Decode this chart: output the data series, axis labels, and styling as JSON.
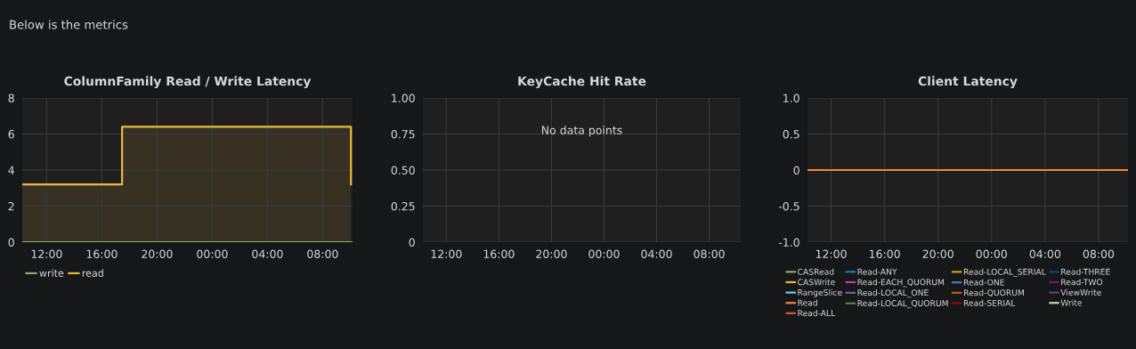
{
  "chart_data": [
    {
      "type": "other",
      "annotations": [
        "Below is the metrics"
      ]
    },
    {
      "type": "area",
      "title": "ColumnFamily Read / Write Latency",
      "xlim": [
        "2000-01-01T10:14",
        "2000-01-02T10:10"
      ],
      "xticks": [
        {
          "value": "2000-01-01T12:00",
          "label": "12:00"
        },
        {
          "value": "2000-01-01T16:00",
          "label": "16:00"
        },
        {
          "value": "2000-01-01T20:00",
          "label": "20:00"
        },
        {
          "value": "2000-01-02T00:00",
          "label": "00:00"
        },
        {
          "value": "2000-01-02T04:00",
          "label": "04:00"
        },
        {
          "value": "2000-01-02T08:00",
          "label": "08:00"
        }
      ],
      "ylim": [
        0,
        8
      ],
      "yticks": [
        0,
        2,
        4,
        6,
        8
      ],
      "grid": true,
      "legend": "bottom left",
      "series": [
        {
          "name": "write",
          "type": "line",
          "color": "#7eb26d",
          "x": [
            "2000-01-01T10:14",
            "2000-01-02T10:10"
          ],
          "values": [
            0,
            0
          ]
        },
        {
          "name": "read",
          "type": "area",
          "color": "#eab839",
          "x": [
            "2000-01-01T10:14",
            "2000-01-01T17:28",
            "2000-01-01T17:28",
            "2000-01-02T10:03",
            "2000-01-02T10:03"
          ],
          "values": [
            3.2,
            3.2,
            6.4,
            6.4,
            3.2
          ]
        }
      ]
    },
    {
      "type": "line",
      "title": "KeyCache Hit Rate",
      "xlim": [
        "2000-01-01T10:13",
        "2000-01-02T10:24"
      ],
      "xticks": [
        {
          "value": "2000-01-01T12:00",
          "label": "12:00"
        },
        {
          "value": "2000-01-01T16:00",
          "label": "16:00"
        },
        {
          "value": "2000-01-01T20:00",
          "label": "20:00"
        },
        {
          "value": "2000-01-02T00:00",
          "label": "00:00"
        },
        {
          "value": "2000-01-02T04:00",
          "label": "04:00"
        },
        {
          "value": "2000-01-02T08:00",
          "label": "08:00"
        }
      ],
      "ylim": [
        0,
        1
      ],
      "yticks": [
        {
          "value": 0,
          "label": "0"
        },
        {
          "value": 0.25,
          "label": "0.25"
        },
        {
          "value": 0.5,
          "label": "0.50"
        },
        {
          "value": 0.75,
          "label": "0.75"
        },
        {
          "value": 1,
          "label": "1.00"
        }
      ],
      "grid": true,
      "annotations": [
        "No data points"
      ]
    },
    {
      "type": "line",
      "title": "Client Latency",
      "xlim": [
        "2000-01-01T10:14",
        "2000-01-02T10:12"
      ],
      "xticks": [
        {
          "value": "2000-01-01T12:00",
          "label": "12:00"
        },
        {
          "value": "2000-01-01T16:00",
          "label": "16:00"
        },
        {
          "value": "2000-01-01T20:00",
          "label": "20:00"
        },
        {
          "value": "2000-01-02T00:00",
          "label": "00:00"
        },
        {
          "value": "2000-01-02T04:00",
          "label": "04:00"
        },
        {
          "value": "2000-01-02T08:00",
          "label": "08:00"
        }
      ],
      "ylim": [
        -1,
        1
      ],
      "yticks": [
        {
          "value": -1,
          "label": "-1.0"
        },
        {
          "value": -0.5,
          "label": "-0.5"
        },
        {
          "value": 0,
          "label": "0"
        },
        {
          "value": 0.5,
          "label": "0.5"
        },
        {
          "value": 1,
          "label": "1.0"
        }
      ],
      "grid": true,
      "legend": "bottom",
      "series": [
        {
          "name": "CASRead",
          "color": "#7eb26d"
        },
        {
          "name": "CASWrite",
          "color": "#eab839"
        },
        {
          "name": "RangeSlice",
          "color": "#6ed0e0"
        },
        {
          "name": "Read",
          "color": "#ef843c",
          "x": [
            "2000-01-01T10:14",
            "2000-01-02T10:12"
          ],
          "values": [
            0,
            0
          ]
        },
        {
          "name": "Read-ALL",
          "color": "#e24d42"
        },
        {
          "name": "Read-ANY",
          "color": "#1f78c1"
        },
        {
          "name": "Read-EACH_QUORUM",
          "color": "#ba43a9"
        },
        {
          "name": "Read-LOCAL_ONE",
          "color": "#705da0"
        },
        {
          "name": "Read-LOCAL_QUORUM",
          "color": "#508642"
        },
        {
          "name": "Read-LOCAL_SERIAL",
          "color": "#cca300"
        },
        {
          "name": "Read-ONE",
          "color": "#447ebc"
        },
        {
          "name": "Read-QUORUM",
          "color": "#c15c17"
        },
        {
          "name": "Read-SERIAL",
          "color": "#890f02"
        },
        {
          "name": "Read-THREE",
          "color": "#0a437c"
        },
        {
          "name": "Read-TWO",
          "color": "#6d1f62"
        },
        {
          "name": "ViewWrite",
          "color": "#584477"
        },
        {
          "name": "Write",
          "color": "#b7dbab"
        }
      ]
    }
  ]
}
